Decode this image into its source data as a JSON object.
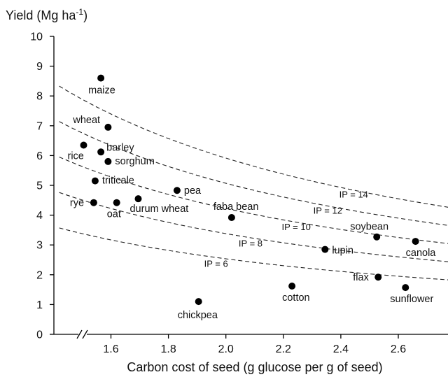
{
  "chart_data": {
    "type": "scatter",
    "ylabel_main": "Yield (Mg ha",
    "ylabel_sup": "-1",
    "ylabel_close": ")",
    "xlabel": "Carbon cost of seed (g glucose per g of seed)",
    "xlim": [
      1.42,
      2.78
    ],
    "ylim": [
      0,
      10
    ],
    "xticks": [
      {
        "value": 1.6,
        "label": "1.6"
      },
      {
        "value": 1.8,
        "label": "1.8"
      },
      {
        "value": 2.0,
        "label": "2.0"
      },
      {
        "value": 2.2,
        "label": "2.2"
      },
      {
        "value": 2.4,
        "label": "2.4"
      },
      {
        "value": 2.6,
        "label": "2.6"
      }
    ],
    "yticks": [
      {
        "value": 0,
        "label": "0"
      },
      {
        "value": 1,
        "label": "1"
      },
      {
        "value": 2,
        "label": "2"
      },
      {
        "value": 3,
        "label": "3"
      },
      {
        "value": 4,
        "label": "4"
      },
      {
        "value": 5,
        "label": "5"
      },
      {
        "value": 6,
        "label": "6"
      },
      {
        "value": 7,
        "label": "7"
      },
      {
        "value": 8,
        "label": "8"
      },
      {
        "value": 9,
        "label": "9"
      },
      {
        "value": 10,
        "label": "10"
      }
    ],
    "axis_break": "x",
    "grid": false,
    "points": [
      {
        "name": "maize",
        "x": 1.565,
        "y": 8.6
      },
      {
        "name": "wheat",
        "x": 1.59,
        "y": 6.95
      },
      {
        "name": "rice",
        "x": 1.505,
        "y": 6.35
      },
      {
        "name": "barley",
        "x": 1.565,
        "y": 6.12
      },
      {
        "name": "sorghum",
        "x": 1.59,
        "y": 5.8
      },
      {
        "name": "triticale",
        "x": 1.545,
        "y": 5.15
      },
      {
        "name": "pea",
        "x": 1.83,
        "y": 4.83
      },
      {
        "name": "rye",
        "x": 1.54,
        "y": 4.42
      },
      {
        "name": "oat",
        "x": 1.62,
        "y": 4.42
      },
      {
        "name": "durum wheat",
        "x": 1.695,
        "y": 4.55
      },
      {
        "name": "faba bean",
        "x": 2.02,
        "y": 3.92
      },
      {
        "name": "soybean",
        "x": 2.525,
        "y": 3.27
      },
      {
        "name": "canola",
        "x": 2.66,
        "y": 3.12
      },
      {
        "name": "lupin",
        "x": 2.345,
        "y": 2.85
      },
      {
        "name": "flax",
        "x": 2.53,
        "y": 1.92
      },
      {
        "name": "cotton",
        "x": 2.23,
        "y": 1.62
      },
      {
        "name": "sunflower",
        "x": 2.625,
        "y": 1.57
      },
      {
        "name": "chickpea",
        "x": 1.905,
        "y": 1.1
      }
    ],
    "isolines": [
      {
        "label": "IP = 6",
        "ip": 6
      },
      {
        "label": "IP = 8",
        "ip": 8
      },
      {
        "label": "IP = 10",
        "ip": 10
      },
      {
        "label": "IP = 12",
        "ip": 12
      },
      {
        "label": "IP = 14",
        "ip": 14
      }
    ]
  }
}
